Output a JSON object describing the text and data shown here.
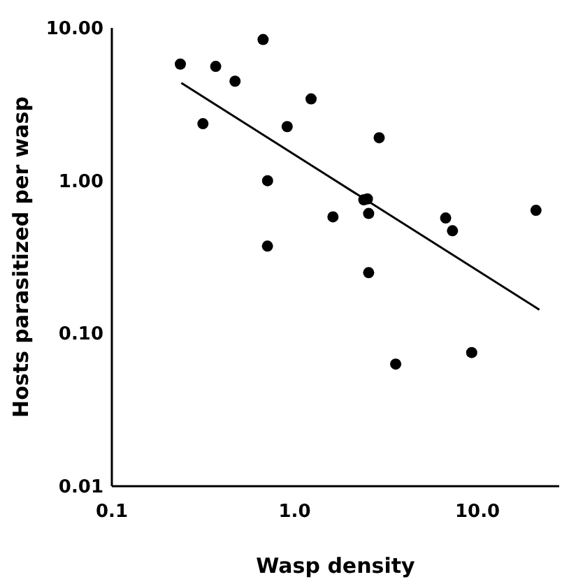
{
  "chart_data": {
    "type": "scatter",
    "xlabel": "Wasp density",
    "ylabel": "Hosts parasitized per wasp",
    "log": "xy",
    "grid": false,
    "xlim": [
      0.1,
      28
    ],
    "ylim": [
      0.01,
      10
    ],
    "xticks": [
      {
        "value": 0.1,
        "label": "0.1"
      },
      {
        "value": 1,
        "label": "1.0"
      },
      {
        "value": 10,
        "label": "10.0"
      }
    ],
    "yticks": [
      {
        "value": 0.01,
        "label": "0.01"
      },
      {
        "value": 0.1,
        "label": "0.10"
      },
      {
        "value": 1,
        "label": "1.00"
      },
      {
        "value": 10,
        "label": "10.00"
      }
    ],
    "series": [
      {
        "marker": "circle",
        "color": "#000000",
        "x": [
          0.237,
          0.315,
          0.37,
          0.472,
          0.672,
          0.711,
          0.71,
          0.91,
          1.23,
          1.62,
          2.39,
          2.5,
          2.54,
          2.54,
          2.9,
          3.57,
          6.7,
          7.3,
          9.3,
          20.9
        ],
        "values": [
          5.8,
          2.36,
          5.6,
          4.48,
          8.4,
          1.0,
          0.373,
          2.26,
          3.43,
          0.58,
          0.75,
          0.76,
          0.61,
          0.25,
          1.91,
          0.063,
          0.57,
          0.47,
          0.075,
          0.64
        ]
      },
      {
        "type": "line",
        "color": "#000000",
        "x": [
          0.24,
          21.8
        ],
        "values": [
          4.36,
          0.143
        ]
      }
    ]
  }
}
